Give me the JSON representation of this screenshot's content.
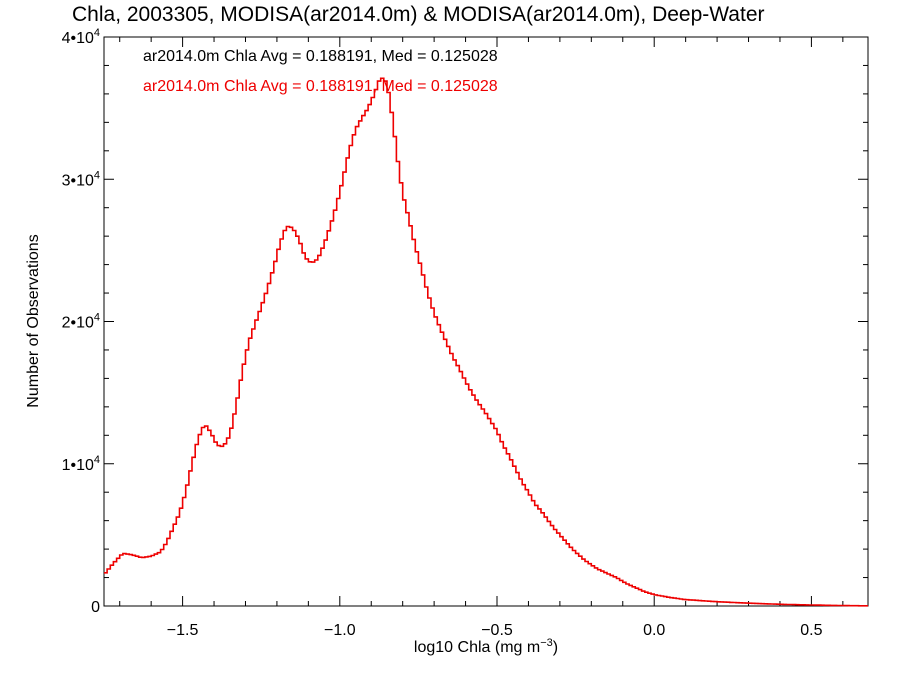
{
  "chart_data": {
    "type": "line",
    "title": "Chla, 2003305, MODISA(ar2014.0m) & MODISA(ar2014.0m), Deep-Water",
    "xlabel": "log10 Chla (mg m⁻³)",
    "ylabel": "Number of Observations",
    "xlim": [
      -1.75,
      0.68
    ],
    "ylim": [
      0,
      40000
    ],
    "x_ticks": [
      {
        "value": -1.5,
        "label": "−1.5"
      },
      {
        "value": -1.0,
        "label": "−1.0"
      },
      {
        "value": -0.5,
        "label": "−0.5"
      },
      {
        "value": 0.0,
        "label": "0.0"
      },
      {
        "value": 0.5,
        "label": "0.5"
      }
    ],
    "y_ticks": [
      {
        "value": 0,
        "label": "0"
      },
      {
        "value": 10000,
        "label": "1•104"
      },
      {
        "value": 20000,
        "label": "2•104"
      },
      {
        "value": 30000,
        "label": "3•104"
      },
      {
        "value": 40000,
        "label": "4•104"
      }
    ],
    "annotations": [
      {
        "text": "ar2014.0m Chla Avg = 0.188191, Med = 0.125028",
        "color": "#000000"
      },
      {
        "text": "ar2014.0m Chla Avg = 0.188191, Med = 0.125028",
        "color": "#ee0000"
      }
    ],
    "series": [
      {
        "color": "#ee0000",
        "x": [
          -1.75,
          -1.72,
          -1.69,
          -1.66,
          -1.63,
          -1.6,
          -1.57,
          -1.55,
          -1.53,
          -1.51,
          -1.49,
          -1.47,
          -1.45,
          -1.43,
          -1.41,
          -1.39,
          -1.37,
          -1.35,
          -1.33,
          -1.31,
          -1.29,
          -1.27,
          -1.25,
          -1.23,
          -1.21,
          -1.19,
          -1.17,
          -1.15,
          -1.13,
          -1.11,
          -1.09,
          -1.07,
          -1.05,
          -1.03,
          -1.01,
          -0.99,
          -0.97,
          -0.95,
          -0.93,
          -0.91,
          -0.89,
          -0.87,
          -0.85,
          -0.83,
          -0.82,
          -0.8,
          -0.78,
          -0.76,
          -0.74,
          -0.72,
          -0.7,
          -0.68,
          -0.66,
          -0.64,
          -0.62,
          -0.6,
          -0.58,
          -0.56,
          -0.54,
          -0.52,
          -0.5,
          -0.48,
          -0.46,
          -0.44,
          -0.42,
          -0.4,
          -0.38,
          -0.36,
          -0.34,
          -0.32,
          -0.3,
          -0.28,
          -0.26,
          -0.24,
          -0.22,
          -0.2,
          -0.18,
          -0.15,
          -0.12,
          -0.09,
          -0.06,
          -0.03,
          0.0,
          0.05,
          0.1,
          0.2,
          0.3,
          0.4,
          0.5,
          0.6,
          0.68
        ],
        "y": [
          2200,
          3000,
          3700,
          3600,
          3400,
          3500,
          3800,
          4500,
          5500,
          6500,
          8000,
          10000,
          11800,
          12800,
          12200,
          11300,
          11200,
          12000,
          14000,
          16500,
          18500,
          19800,
          21000,
          22300,
          23800,
          25500,
          26700,
          26600,
          25800,
          24500,
          24100,
          24400,
          25400,
          26700,
          28200,
          30000,
          32000,
          33500,
          34300,
          35000,
          36000,
          37200,
          36800,
          34000,
          32000,
          29000,
          27200,
          25300,
          23700,
          22000,
          20600,
          19500,
          18500,
          17500,
          16700,
          15800,
          15000,
          14300,
          13700,
          13000,
          12300,
          11300,
          10500,
          9600,
          8700,
          8000,
          7200,
          6700,
          6100,
          5500,
          5000,
          4500,
          4000,
          3600,
          3200,
          2900,
          2600,
          2300,
          2000,
          1600,
          1300,
          1000,
          800,
          600,
          450,
          300,
          200,
          120,
          70,
          30,
          10
        ]
      }
    ]
  }
}
